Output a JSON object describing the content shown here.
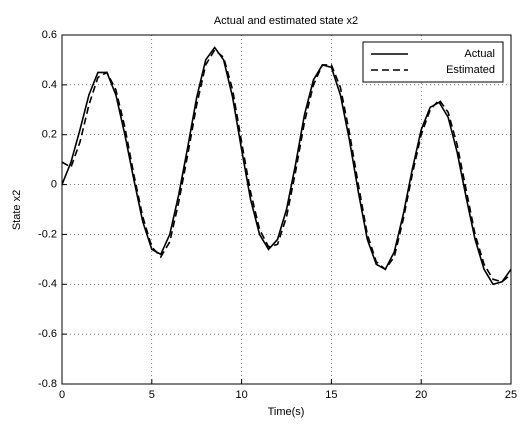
{
  "chart_data": {
    "type": "line",
    "title": "Actual and estimated state x2",
    "x_label": "Time(s)",
    "y_label": "State x2",
    "x": [
      0,
      0.5,
      1,
      1.5,
      2,
      2.5,
      3,
      3.5,
      4,
      4.5,
      5,
      5.5,
      6,
      6.5,
      7,
      7.5,
      8,
      8.5,
      9,
      9.5,
      10,
      10.5,
      11,
      11.5,
      12,
      12.5,
      13,
      13.5,
      14,
      14.5,
      15,
      15.5,
      16,
      16.5,
      17,
      17.5,
      18,
      18.5,
      19,
      19.5,
      20,
      20.5,
      21,
      21.5,
      22,
      22.5,
      23,
      23.5,
      24,
      24.5,
      25
    ],
    "series": [
      {
        "name": "Actual",
        "color": "#000000",
        "dash": "solid",
        "values": [
          0,
          0.09,
          0.22,
          0.36,
          0.45,
          0.45,
          0.36,
          0.2,
          0.02,
          -0.15,
          -0.26,
          -0.28,
          -0.2,
          -0.04,
          0.15,
          0.35,
          0.5,
          0.55,
          0.5,
          0.35,
          0.14,
          -0.06,
          -0.2,
          -0.26,
          -0.22,
          -0.1,
          0.08,
          0.28,
          0.42,
          0.48,
          0.47,
          0.36,
          0.18,
          -0.03,
          -0.22,
          -0.32,
          -0.34,
          -0.27,
          -0.12,
          0.06,
          0.22,
          0.31,
          0.33,
          0.27,
          0.13,
          -0.05,
          -0.22,
          -0.34,
          -0.4,
          -0.39,
          -0.34
        ]
      },
      {
        "name": "Estimated",
        "color": "#000000",
        "dash": "dashed",
        "values": [
          0.09,
          0.07,
          0.17,
          0.32,
          0.43,
          0.45,
          0.38,
          0.23,
          0.04,
          -0.13,
          -0.25,
          -0.29,
          -0.23,
          -0.07,
          0.12,
          0.32,
          0.48,
          0.54,
          0.51,
          0.38,
          0.17,
          -0.03,
          -0.18,
          -0.25,
          -0.24,
          -0.13,
          0.05,
          0.25,
          0.4,
          0.48,
          0.48,
          0.39,
          0.21,
          0,
          -0.2,
          -0.31,
          -0.34,
          -0.29,
          -0.14,
          0.04,
          0.2,
          0.3,
          0.34,
          0.29,
          0.16,
          -0.02,
          -0.2,
          -0.32,
          -0.38,
          -0.39,
          -0.36
        ]
      }
    ],
    "xlim": [
      0,
      25
    ],
    "xticks": [
      0,
      5,
      10,
      15,
      20,
      25
    ],
    "ylim": [
      -0.8,
      0.6
    ],
    "yticks": [
      -0.8,
      -0.6,
      -0.4,
      -0.2,
      0,
      0.2,
      0.4,
      0.6
    ],
    "grid": true,
    "legend": "northeast"
  }
}
